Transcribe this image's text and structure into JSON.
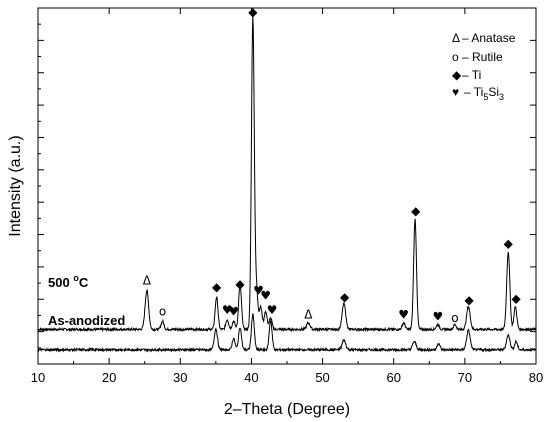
{
  "chart_data": {
    "type": "line",
    "xlabel": "2–Theta (Degree)",
    "ylabel": "Intensity (a.u.)",
    "xlim": [
      10,
      80
    ],
    "x_ticks": [
      10,
      20,
      30,
      40,
      50,
      60,
      70,
      80
    ],
    "y_tick_labels_shown": false,
    "grid": false,
    "legend_placement": "top-right",
    "legend": [
      {
        "symbol": "Δ",
        "label": "– Anatase",
        "phase": "anatase"
      },
      {
        "symbol": "o",
        "label": "– Rutile",
        "phase": "rutile"
      },
      {
        "symbol": "◆",
        "label": "– Ti",
        "phase": "ti"
      },
      {
        "symbol": "♥",
        "label": "– Ti",
        "sub1": "5",
        "mid": "Si",
        "sub2": "3",
        "phase": "ti5si3"
      }
    ],
    "series": [
      {
        "name": "500 °C",
        "label_main": "500 ",
        "label_sup": "o",
        "label_tail": "C",
        "baseline": 0.7,
        "peaks": [
          {
            "x": 25.3,
            "h": 12,
            "w": 0.25
          },
          {
            "x": 27.5,
            "h": 2.5,
            "w": 0.2
          },
          {
            "x": 35.1,
            "h": 10,
            "w": 0.2
          },
          {
            "x": 36.6,
            "h": 3,
            "w": 0.2
          },
          {
            "x": 37.5,
            "h": 2.5,
            "w": 0.2
          },
          {
            "x": 38.4,
            "h": 14,
            "w": 0.2
          },
          {
            "x": 40.2,
            "h": 96,
            "w": 0.2
          },
          {
            "x": 40.7,
            "h": 12,
            "w": 0.2
          },
          {
            "x": 41.3,
            "h": 7,
            "w": 0.2
          },
          {
            "x": 42.0,
            "h": 5.5,
            "w": 0.2
          },
          {
            "x": 42.7,
            "h": 3.5,
            "w": 0.2
          },
          {
            "x": 48.0,
            "h": 2,
            "w": 0.25
          },
          {
            "x": 53.0,
            "h": 8,
            "w": 0.25
          },
          {
            "x": 61.4,
            "h": 2,
            "w": 0.2
          },
          {
            "x": 63.0,
            "h": 34,
            "w": 0.2
          },
          {
            "x": 66.2,
            "h": 1.5,
            "w": 0.2
          },
          {
            "x": 68.6,
            "h": 1.5,
            "w": 0.2
          },
          {
            "x": 70.5,
            "h": 7,
            "w": 0.25
          },
          {
            "x": 76.1,
            "h": 24,
            "w": 0.22
          },
          {
            "x": 77.1,
            "h": 7,
            "w": 0.2
          }
        ]
      },
      {
        "name": "As-anodized",
        "label_main": "As-anodized",
        "label_sup": "",
        "label_tail": "",
        "baseline": -5.6,
        "peaks": [
          {
            "x": 35.0,
            "h": 6.5,
            "w": 0.22
          },
          {
            "x": 37.5,
            "h": 3.5,
            "w": 0.2
          },
          {
            "x": 38.4,
            "h": 7,
            "w": 0.2
          },
          {
            "x": 40.2,
            "h": 11,
            "w": 0.2
          },
          {
            "x": 42.7,
            "h": 9,
            "w": 0.2
          },
          {
            "x": 53.0,
            "h": 3,
            "w": 0.25
          },
          {
            "x": 62.9,
            "h": 2.5,
            "w": 0.25
          },
          {
            "x": 66.3,
            "h": 2,
            "w": 0.2
          },
          {
            "x": 70.5,
            "h": 6,
            "w": 0.25
          },
          {
            "x": 76.1,
            "h": 4.5,
            "w": 0.25
          },
          {
            "x": 77.2,
            "h": 2.5,
            "w": 0.2
          }
        ]
      }
    ],
    "annotations": [
      {
        "symbol": "Δ",
        "x": 25.3,
        "y": 14.5,
        "phase": "anatase"
      },
      {
        "symbol": "o",
        "x": 27.5,
        "y": 5.0,
        "phase": "rutile"
      },
      {
        "symbol": "◆",
        "x": 35.1,
        "y": 12.5,
        "phase": "ti"
      },
      {
        "symbol": "♥",
        "x": 36.6,
        "y": 5.5,
        "phase": "ti5si3"
      },
      {
        "symbol": "♥",
        "x": 37.5,
        "y": 5.0,
        "phase": "ti5si3"
      },
      {
        "symbol": "◆",
        "x": 38.4,
        "y": 13.5,
        "phase": "ti"
      },
      {
        "symbol": "◆",
        "x": 40.2,
        "y": 97.5,
        "phase": "ti"
      },
      {
        "symbol": "♥",
        "x": 41.0,
        "y": 11.5,
        "phase": "ti5si3"
      },
      {
        "symbol": "♥",
        "x": 42.0,
        "y": 10.0,
        "phase": "ti5si3"
      },
      {
        "symbol": "♥",
        "x": 42.9,
        "y": 5.5,
        "phase": "ti5si3"
      },
      {
        "symbol": "Δ",
        "x": 48.0,
        "y": 4.0,
        "phase": "anatase"
      },
      {
        "symbol": "◆",
        "x": 53.1,
        "y": 9.5,
        "phase": "ti"
      },
      {
        "symbol": "♥",
        "x": 61.4,
        "y": 4.0,
        "phase": "ti5si3"
      },
      {
        "symbol": "◆",
        "x": 63.1,
        "y": 36.0,
        "phase": "ti"
      },
      {
        "symbol": "♥",
        "x": 66.2,
        "y": 3.5,
        "phase": "ti5si3"
      },
      {
        "symbol": "o",
        "x": 68.6,
        "y": 3.0,
        "phase": "rutile"
      },
      {
        "symbol": "◆",
        "x": 70.6,
        "y": 8.5,
        "phase": "ti"
      },
      {
        "symbol": "◆",
        "x": 76.1,
        "y": 26.0,
        "phase": "ti"
      },
      {
        "symbol": "◆",
        "x": 77.2,
        "y": 9.0,
        "phase": "ti"
      }
    ]
  }
}
